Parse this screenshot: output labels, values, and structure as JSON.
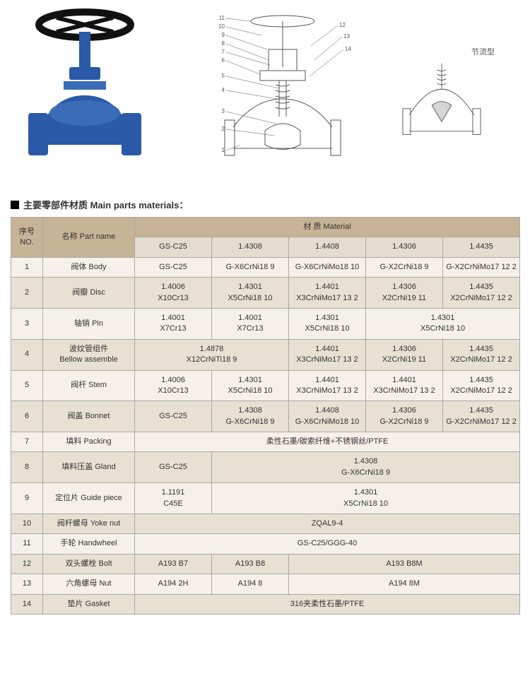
{
  "topImages": {
    "photoAlt": "valve photo",
    "diagramAlt": "valve section diagram",
    "numberingStart": 1,
    "numberingEnd": 14,
    "smallLabel": "节流型",
    "smallAlt": "throttling section"
  },
  "section": {
    "title": "主要零部件材质 Main parts materials："
  },
  "table": {
    "header": {
      "no": "序号NO.",
      "partName": "名称 Part name",
      "material": "材    质 Material",
      "cols": [
        "GS-C25",
        "1.4308",
        "1.4408",
        "1.4306",
        "1.4435"
      ]
    },
    "rows": [
      {
        "no": "1",
        "name": "阀体 Body",
        "cells": [
          {
            "t": "GS-C25",
            "span": 1
          },
          {
            "t": "G-X6CrNi18 9",
            "span": 1
          },
          {
            "t": "G-X6CrNiMo18 10",
            "span": 1
          },
          {
            "t": "G-X2CrNi18 9",
            "span": 1
          },
          {
            "t": "G-X2CrNiMo17 12 2",
            "span": 1
          }
        ]
      },
      {
        "no": "2",
        "name": "阀瓣 Disc",
        "cells": [
          {
            "t": "1.4006\nX10Cr13",
            "span": 1
          },
          {
            "t": "1.4301\nX5CrNi18 10",
            "span": 1
          },
          {
            "t": "1.4401\nX3CrNiMo17 13 2",
            "span": 1
          },
          {
            "t": "1.4306\nX2CrNi19 11",
            "span": 1
          },
          {
            "t": "1.4435\nX2CrNiMo17 12 2",
            "span": 1
          }
        ]
      },
      {
        "no": "3",
        "name": "轴销 Pin",
        "cells": [
          {
            "t": "1.4001\nX7Cr13",
            "span": 1
          },
          {
            "t": "1.4001\nX7Cr13",
            "span": 1
          },
          {
            "t": "1.4301\nX5CrNi18 10",
            "span": 1
          },
          {
            "t": "1.4301\nX5CrNi18 10",
            "span": 2
          }
        ]
      },
      {
        "no": "4",
        "name": "波纹管组件\nBellow assemble",
        "cells": [
          {
            "t": "1.4878\nX12CrNiTi18 9",
            "span": 2
          },
          {
            "t": "1.4401\nX3CrNiMo17 13 2",
            "span": 1
          },
          {
            "t": "1.4306\nX2CrNi19 11",
            "span": 1
          },
          {
            "t": "1.4435\nX2CrNiMo17 12 2",
            "span": 1
          }
        ]
      },
      {
        "no": "5",
        "name": "阀杆 Stem",
        "cells": [
          {
            "t": "1.4006\nX10Cr13",
            "span": 1
          },
          {
            "t": "1.4301\nX5CrNi18 10",
            "span": 1
          },
          {
            "t": "1.4401\nX3CrNiMo17 13 2",
            "span": 1
          },
          {
            "t": "1.4401\nX3CrNiMo17 13 2",
            "span": 1
          },
          {
            "t": "1.4435\nX2CrNiMo17 12 2",
            "span": 1
          }
        ]
      },
      {
        "no": "6",
        "name": "阀盖 Bonnet",
        "cells": [
          {
            "t": "GS-C25",
            "span": 1
          },
          {
            "t": "1.4308\nG-X6CrNi18 9",
            "span": 1
          },
          {
            "t": "1.4408\nG-X6CrNiMo18 10",
            "span": 1
          },
          {
            "t": "1.4306\nG-X2CrNi18 9",
            "span": 1
          },
          {
            "t": "1.4435\nG-X2CrNiMo17 12 2",
            "span": 1
          }
        ]
      },
      {
        "no": "7",
        "name": "填料 Packing",
        "cells": [
          {
            "t": "柔性石墨/碳索纤维+不锈钢丝/PTFE",
            "span": 5
          }
        ]
      },
      {
        "no": "8",
        "name": "填料压盖 Gland",
        "cells": [
          {
            "t": "GS-C25",
            "span": 1
          },
          {
            "t": "1.4308\nG-X6CrNi18 9",
            "span": 4
          }
        ]
      },
      {
        "no": "9",
        "name": "定位片 Guide piece",
        "cells": [
          {
            "t": "1.1191\nC45E",
            "span": 1
          },
          {
            "t": "1.4301\nX5CrNi18 10",
            "span": 4
          }
        ]
      },
      {
        "no": "10",
        "name": "阀杆螺母 Yoke nut",
        "cells": [
          {
            "t": "ZQAL9-4",
            "span": 5
          }
        ]
      },
      {
        "no": "11",
        "name": "手轮 Handwheel",
        "cells": [
          {
            "t": "GS-C25/GGG-40",
            "span": 5
          }
        ]
      },
      {
        "no": "12",
        "name": "双头螺栓 Bolt",
        "cells": [
          {
            "t": "A193  B7",
            "span": 1
          },
          {
            "t": "A193  B8",
            "span": 1
          },
          {
            "t": "A193  B8M",
            "span": 3
          }
        ]
      },
      {
        "no": "13",
        "name": "六角螺母 Nut",
        "cells": [
          {
            "t": "A194  2H",
            "span": 1
          },
          {
            "t": "A194  8",
            "span": 1
          },
          {
            "t": "A194  8M",
            "span": 3
          }
        ]
      },
      {
        "no": "14",
        "name": "垫片 Gasket",
        "cells": [
          {
            "t": "316夹柔性石墨/PTFE",
            "span": 5
          }
        ]
      }
    ]
  }
}
